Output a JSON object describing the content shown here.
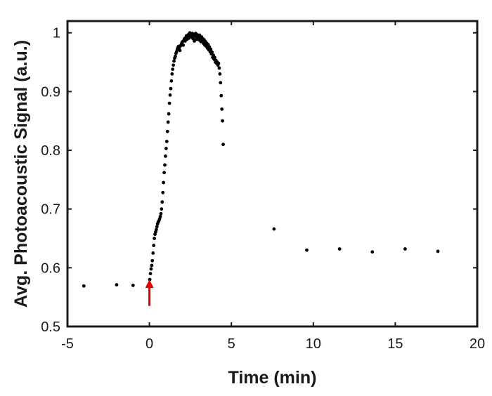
{
  "chart_data": {
    "type": "scatter",
    "title": "",
    "xlabel": "Time (min)",
    "ylabel": "Avg. Photoacoustic Signal (a.u.)",
    "xlim": [
      -5,
      20
    ],
    "ylim": [
      0.5,
      1.02
    ],
    "xticks": [
      -5,
      0,
      5,
      10,
      15,
      20
    ],
    "yticks": [
      0.5,
      0.6,
      0.7,
      0.8,
      0.9,
      1
    ],
    "xtick_labels": [
      "-5",
      "0",
      "5",
      "10",
      "15",
      "20"
    ],
    "ytick_labels": [
      "0.5",
      "0.6",
      "0.7",
      "0.8",
      "0.9",
      "1"
    ],
    "grid": false,
    "legend": "none",
    "marker_color": "#000000",
    "annotation": {
      "type": "arrow",
      "color": "#e00000",
      "x": 0,
      "y_tail": 0.535,
      "y_head": 0.58
    },
    "series": [
      {
        "x": [
          -4.0,
          -2.0,
          -1.0,
          0.02,
          0.06,
          0.1,
          0.14,
          0.18,
          0.22,
          0.26,
          0.3,
          0.34,
          0.38,
          0.42,
          0.46,
          0.5,
          0.54,
          0.58,
          0.62,
          0.66,
          0.7,
          0.74,
          0.78,
          0.82,
          0.86,
          0.9,
          0.94,
          0.98,
          1.02,
          1.06,
          1.1,
          1.14,
          1.18,
          1.22,
          1.26,
          1.3,
          1.34,
          1.38,
          1.42,
          1.46,
          1.5,
          1.54,
          1.58,
          1.62,
          1.66,
          1.7,
          1.74,
          1.78,
          1.82,
          1.86,
          1.9,
          1.94,
          1.98,
          2.02,
          2.06,
          2.1,
          2.14,
          2.18,
          2.22,
          2.26,
          2.3,
          2.34,
          2.38,
          2.42,
          2.46,
          2.5,
          2.54,
          2.58,
          2.62,
          2.66,
          2.7,
          2.74,
          2.78,
          2.82,
          2.86,
          2.9,
          2.94,
          2.98,
          3.02,
          3.06,
          3.1,
          3.14,
          3.18,
          3.22,
          3.26,
          3.3,
          3.34,
          3.38,
          3.42,
          3.46,
          3.5,
          3.54,
          3.58,
          3.62,
          3.66,
          3.7,
          3.74,
          3.78,
          3.82,
          3.86,
          3.9,
          3.94,
          3.98,
          4.02,
          4.06,
          4.1,
          4.14,
          4.18,
          4.22,
          4.26,
          4.3,
          4.34,
          4.38,
          4.42,
          4.46,
          4.5,
          7.6,
          9.6,
          11.6,
          13.6,
          15.6,
          17.6
        ],
        "y": [
          0.569,
          0.571,
          0.57,
          0.58,
          0.59,
          0.598,
          0.604,
          0.612,
          0.625,
          0.638,
          0.65,
          0.657,
          0.661,
          0.665,
          0.67,
          0.675,
          0.678,
          0.68,
          0.683,
          0.687,
          0.692,
          0.7,
          0.712,
          0.728,
          0.745,
          0.762,
          0.775,
          0.79,
          0.803,
          0.815,
          0.832,
          0.848,
          0.862,
          0.88,
          0.894,
          0.905,
          0.918,
          0.93,
          0.938,
          0.945,
          0.952,
          0.957,
          0.96,
          0.965,
          0.968,
          0.972,
          0.975,
          0.977,
          0.975,
          0.97,
          0.978,
          0.98,
          0.983,
          0.985,
          0.979,
          0.987,
          0.99,
          0.986,
          0.992,
          0.995,
          0.989,
          0.993,
          0.997,
          0.991,
          1.0,
          0.995,
          0.998,
          0.993,
          0.999,
          0.99,
          0.996,
          0.986,
          0.994,
          0.999,
          0.989,
          0.997,
          0.992,
          0.995,
          0.988,
          0.996,
          0.991,
          0.985,
          0.993,
          0.987,
          0.99,
          0.982,
          0.988,
          0.979,
          0.985,
          0.977,
          0.982,
          0.974,
          0.98,
          0.971,
          0.976,
          0.968,
          0.972,
          0.964,
          0.967,
          0.958,
          0.962,
          0.955,
          0.958,
          0.95,
          0.953,
          0.948,
          0.95,
          0.945,
          0.948,
          0.94,
          0.93,
          0.915,
          0.893,
          0.87,
          0.85,
          0.81,
          0.666,
          0.63,
          0.632,
          0.627,
          0.632,
          0.628
        ]
      }
    ]
  }
}
